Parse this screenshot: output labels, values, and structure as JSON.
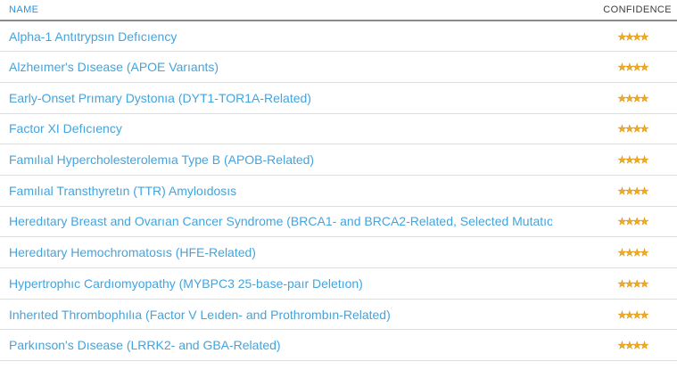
{
  "table": {
    "header": {
      "name_label": "NAME",
      "confidence_label": "CONFIDENCE"
    },
    "star_glyph": "★",
    "max_stars": 4,
    "rows": [
      {
        "name": "Alpha-1 Antıtrypsın Defıcıency",
        "stars": 4
      },
      {
        "name": "Alzheımer's Dısease (APOE Varıants)",
        "stars": 4
      },
      {
        "name": "Early-Onset Prımary Dystonıa (DYT1-TOR1A-Related)",
        "stars": 4
      },
      {
        "name": "Factor XI Defıcıency",
        "stars": 4
      },
      {
        "name": "Famılıal Hypercholesterolemıa Type B (APOB-Related)",
        "stars": 4
      },
      {
        "name": "Famılıal Transthyretın (TTR) Amyloıdosıs",
        "stars": 4
      },
      {
        "name": "Heredıtary Breast and Ovarıan Cancer Syndrome (BRCA1- and BRCA2-Related, Selected Mutatıons)",
        "stars": 4
      },
      {
        "name": "Heredıtary Hemochromatosıs (HFE-Related)",
        "stars": 4
      },
      {
        "name": "Hypertrophıc Cardıomyopathy (MYBPC3 25-base-paır Deletıon)",
        "stars": 4
      },
      {
        "name": "Inherıted Thrombophılıa (Factor V Leıden- and Prothrombın-Related)",
        "stars": 4
      },
      {
        "name": "Parkınson's Dısease (LRRK2- and GBA-Related)",
        "stars": 4
      }
    ]
  },
  "colors": {
    "header_name": "#2196e8",
    "header_confidence": "#3c3c3c",
    "link": "#43a4de",
    "star": "#f3ab1c",
    "header_border": "#8a8a8a",
    "row_border": "#dddddd"
  }
}
